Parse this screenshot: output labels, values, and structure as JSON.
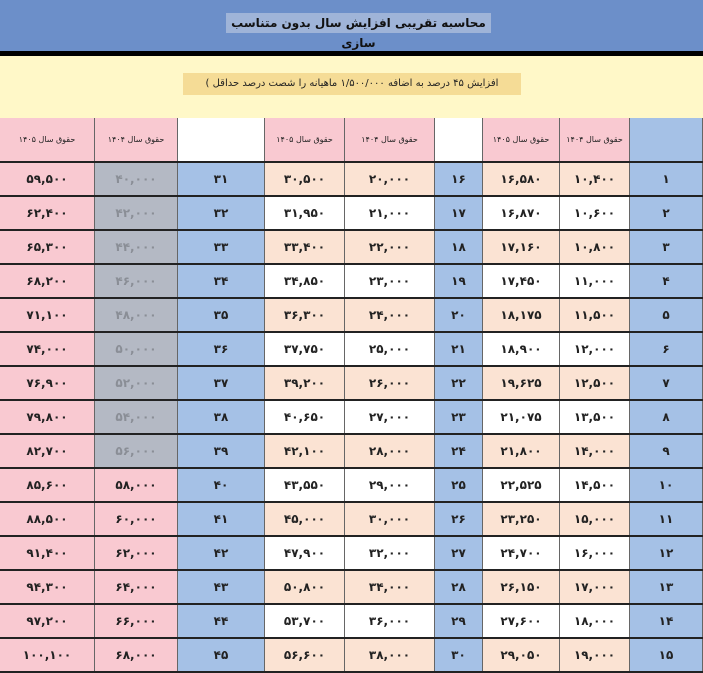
{
  "title": "محاسبه تقریبی افزایش سال بدون متناسب سازی",
  "note": "افزایش ۴۵ درصد به اضافه ۱/۵۰۰/۰۰۰ ماهیانه را شصت درصد حداقل )",
  "headers": {
    "y1404": "حقوق سال ۱۴۰۴",
    "y1405": "حقوق سال ۱۴۰۵"
  },
  "groups": [
    {
      "rows": [
        [
          "۱",
          "۱۰,۴۰۰",
          "۱۶,۵۸۰"
        ],
        [
          "۲",
          "۱۰,۶۰۰",
          "۱۶,۸۷۰"
        ],
        [
          "۳",
          "۱۰,۸۰۰",
          "۱۷,۱۶۰"
        ],
        [
          "۴",
          "۱۱,۰۰۰",
          "۱۷,۴۵۰"
        ],
        [
          "۵",
          "۱۱,۵۰۰",
          "۱۸,۱۷۵"
        ],
        [
          "۶",
          "۱۲,۰۰۰",
          "۱۸,۹۰۰"
        ],
        [
          "۷",
          "۱۲,۵۰۰",
          "۱۹,۶۲۵"
        ],
        [
          "۸",
          "۱۳,۵۰۰",
          "۲۱,۰۷۵"
        ],
        [
          "۹",
          "۱۴,۰۰۰",
          "۲۱,۸۰۰"
        ],
        [
          "۱۰",
          "۱۴,۵۰۰",
          "۲۲,۵۲۵"
        ],
        [
          "۱۱",
          "۱۵,۰۰۰",
          "۲۳,۲۵۰"
        ],
        [
          "۱۲",
          "۱۶,۰۰۰",
          "۲۴,۷۰۰"
        ],
        [
          "۱۳",
          "۱۷,۰۰۰",
          "۲۶,۱۵۰"
        ],
        [
          "۱۴",
          "۱۸,۰۰۰",
          "۲۷,۶۰۰"
        ],
        [
          "۱۵",
          "۱۹,۰۰۰",
          "۲۹,۰۵۰"
        ]
      ]
    },
    {
      "rows": [
        [
          "۱۶",
          "۲۰,۰۰۰",
          "۳۰,۵۰۰"
        ],
        [
          "۱۷",
          "۲۱,۰۰۰",
          "۳۱,۹۵۰"
        ],
        [
          "۱۸",
          "۲۲,۰۰۰",
          "۳۳,۴۰۰"
        ],
        [
          "۱۹",
          "۲۳,۰۰۰",
          "۳۴,۸۵۰"
        ],
        [
          "۲۰",
          "۲۴,۰۰۰",
          "۳۶,۳۰۰"
        ],
        [
          "۲۱",
          "۲۵,۰۰۰",
          "۳۷,۷۵۰"
        ],
        [
          "۲۲",
          "۲۶,۰۰۰",
          "۳۹,۲۰۰"
        ],
        [
          "۲۳",
          "۲۷,۰۰۰",
          "۴۰,۶۵۰"
        ],
        [
          "۲۴",
          "۲۸,۰۰۰",
          "۴۲,۱۰۰"
        ],
        [
          "۲۵",
          "۲۹,۰۰۰",
          "۴۳,۵۵۰"
        ],
        [
          "۲۶",
          "۳۰,۰۰۰",
          "۴۵,۰۰۰"
        ],
        [
          "۲۷",
          "۳۲,۰۰۰",
          "۴۷,۹۰۰"
        ],
        [
          "۲۸",
          "۳۴,۰۰۰",
          "۵۰,۸۰۰"
        ],
        [
          "۲۹",
          "۳۶,۰۰۰",
          "۵۳,۷۰۰"
        ],
        [
          "۳۰",
          "۳۸,۰۰۰",
          "۵۶,۶۰۰"
        ]
      ]
    },
    {
      "rows": [
        [
          "۳۱",
          "۴۰,۰۰۰",
          "۵۹,۵۰۰"
        ],
        [
          "۳۲",
          "۴۲,۰۰۰",
          "۶۲,۴۰۰"
        ],
        [
          "۳۳",
          "۴۴,۰۰۰",
          "۶۵,۳۰۰"
        ],
        [
          "۳۴",
          "۴۶,۰۰۰",
          "۶۸,۲۰۰"
        ],
        [
          "۳۵",
          "۴۸,۰۰۰",
          "۷۱,۱۰۰"
        ],
        [
          "۳۶",
          "۵۰,۰۰۰",
          "۷۴,۰۰۰"
        ],
        [
          "۳۷",
          "۵۲,۰۰۰",
          "۷۶,۹۰۰"
        ],
        [
          "۳۸",
          "۵۴,۰۰۰",
          "۷۹,۸۰۰"
        ],
        [
          "۳۹",
          "۵۶,۰۰۰",
          "۸۲,۷۰۰"
        ],
        [
          "۴۰",
          "۵۸,۰۰۰",
          "۸۵,۶۰۰"
        ],
        [
          "۴۱",
          "۶۰,۰۰۰",
          "۸۸,۵۰۰"
        ],
        [
          "۴۲",
          "۶۲,۰۰۰",
          "۹۱,۴۰۰"
        ],
        [
          "۴۳",
          "۶۴,۰۰۰",
          "۹۴,۳۰۰"
        ],
        [
          "۴۴",
          "۶۶,۰۰۰",
          "۹۷,۲۰۰"
        ],
        [
          "۴۵",
          "۶۸,۰۰۰",
          "۱۰۰,۱۰۰"
        ]
      ]
    }
  ],
  "colors": {
    "title_bar": "#6c8fc9",
    "background": "#fff8c8",
    "index": "#a5c1e6",
    "pink": "#f9c9d1",
    "gray": "#b4b9c4",
    "peach": "#fbe3d3"
  }
}
